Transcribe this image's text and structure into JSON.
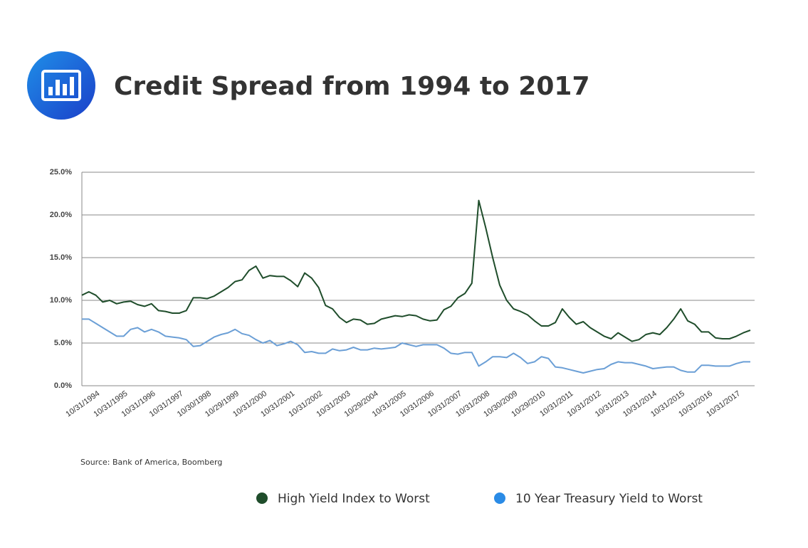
{
  "chart_data": {
    "type": "line",
    "title": "Credit Spread from 1994 to 2017",
    "source": "Source: Bank of America, Boomberg",
    "categories": [
      "10/31/1994",
      null,
      null,
      null,
      "10/31/1995",
      null,
      null,
      null,
      "10/31/1996",
      null,
      null,
      null,
      "10/31/1997",
      null,
      null,
      null,
      "10/30/1998",
      null,
      null,
      null,
      "10/29/1999",
      null,
      null,
      null,
      "10/31/2000",
      null,
      null,
      null,
      "10/31/2001",
      null,
      null,
      null,
      "10/31/2002",
      null,
      null,
      null,
      "10/31/2003",
      null,
      null,
      null,
      "10/29/2004",
      null,
      null,
      null,
      "10/31/2005",
      null,
      null,
      null,
      "10/31/2006",
      null,
      null,
      null,
      "10/31/2007",
      null,
      null,
      null,
      "10/31/2008",
      null,
      null,
      null,
      "10/30/2009",
      null,
      null,
      null,
      "10/29/2010",
      null,
      null,
      null,
      "10/31/2011",
      null,
      null,
      null,
      "10/31/2012",
      null,
      null,
      null,
      "10/31/2013",
      null,
      null,
      null,
      "10/31/2014",
      null,
      null,
      null,
      "10/31/2015",
      null,
      null,
      null,
      "10/31/2016",
      null,
      null,
      null,
      "10/31/2017",
      null,
      null,
      null,
      null
    ],
    "series": [
      {
        "name": "High Yield Index to Worst",
        "color": "#1f4d2b",
        "values": [
          10.6,
          11.0,
          10.6,
          9.8,
          10.0,
          9.6,
          9.8,
          9.9,
          9.5,
          9.3,
          9.6,
          8.8,
          8.7,
          8.5,
          8.5,
          8.8,
          10.3,
          10.3,
          10.2,
          10.5,
          11.0,
          11.5,
          12.2,
          12.4,
          13.5,
          14.0,
          12.6,
          12.9,
          12.8,
          12.8,
          12.3,
          11.6,
          13.2,
          12.6,
          11.5,
          9.4,
          9.0,
          8.0,
          7.4,
          7.8,
          7.7,
          7.2,
          7.3,
          7.8,
          8.0,
          8.2,
          8.1,
          8.3,
          8.2,
          7.8,
          7.6,
          7.7,
          8.9,
          9.3,
          10.3,
          10.8,
          12.0,
          21.7,
          18.5,
          15.0,
          11.8,
          10.0,
          9.0,
          8.7,
          8.3,
          7.6,
          7.0,
          7.0,
          7.4,
          9.0,
          8.0,
          7.2,
          7.5,
          6.8,
          6.3,
          5.8,
          5.5,
          6.2,
          5.7,
          5.2,
          5.4,
          6.0,
          6.2,
          6.0,
          6.8,
          7.8,
          9.0,
          7.6,
          7.2,
          6.3,
          6.3,
          5.6,
          5.5,
          5.5,
          5.8,
          6.2,
          6.5
        ]
      },
      {
        "name": "10 Year Treasury Yield to Worst",
        "color": "#6b9fd6",
        "values": [
          7.8,
          7.8,
          7.3,
          6.8,
          6.3,
          5.8,
          5.8,
          6.6,
          6.8,
          6.3,
          6.6,
          6.3,
          5.8,
          5.7,
          5.6,
          5.4,
          4.6,
          4.7,
          5.2,
          5.7,
          6.0,
          6.2,
          6.6,
          6.1,
          5.9,
          5.4,
          5.0,
          5.3,
          4.7,
          4.9,
          5.2,
          4.8,
          3.9,
          4.0,
          3.8,
          3.8,
          4.3,
          4.1,
          4.2,
          4.5,
          4.2,
          4.2,
          4.4,
          4.3,
          4.4,
          4.5,
          5.0,
          4.8,
          4.6,
          4.8,
          4.8,
          4.8,
          4.4,
          3.8,
          3.7,
          3.9,
          3.9,
          2.3,
          2.8,
          3.4,
          3.4,
          3.3,
          3.8,
          3.3,
          2.6,
          2.8,
          3.4,
          3.2,
          2.2,
          2.1,
          1.9,
          1.7,
          1.5,
          1.7,
          1.9,
          2.0,
          2.5,
          2.8,
          2.7,
          2.7,
          2.5,
          2.3,
          2.0,
          2.1,
          2.2,
          2.2,
          1.8,
          1.6,
          1.6,
          2.4,
          2.4,
          2.3,
          2.3,
          2.3,
          2.6,
          2.8,
          2.8
        ]
      }
    ],
    "ylim": [
      0,
      25
    ],
    "yticks": [
      {
        "value": 0,
        "label": "0.0%"
      },
      {
        "value": 5,
        "label": "5.0%"
      },
      {
        "value": 10,
        "label": "10.0%"
      },
      {
        "value": 15,
        "label": "15.0%"
      },
      {
        "value": 20,
        "label": "20.0%"
      },
      {
        "value": 25,
        "label": "25.0%"
      }
    ],
    "grid": true
  }
}
